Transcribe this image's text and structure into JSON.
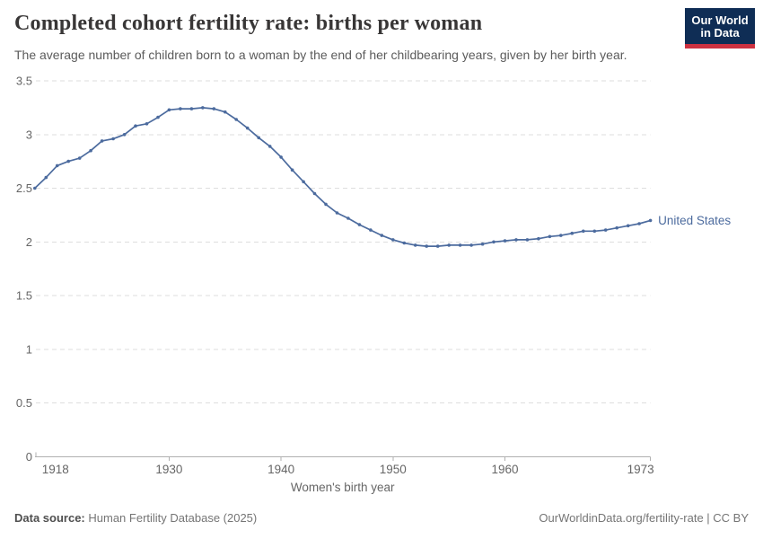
{
  "header": {
    "title": "Completed cohort fertility rate: births per woman",
    "subtitle": "The average number of children born to a woman by the end of her childbearing years, given by her birth year.",
    "logo": {
      "line1": "Our World",
      "line2": "in Data",
      "bg_color": "#0f2d55",
      "accent_color": "#cd3140"
    }
  },
  "chart_data": {
    "type": "line",
    "title": "Completed cohort fertility rate: births per woman",
    "xlabel": "Women's birth year",
    "ylabel": "",
    "xlim": [
      1918,
      1973
    ],
    "ylim": [
      0,
      3.5
    ],
    "x_ticks": [
      1918,
      1930,
      1940,
      1950,
      1960,
      1973
    ],
    "y_ticks": [
      0,
      0.5,
      1,
      1.5,
      2,
      2.5,
      3,
      3.5
    ],
    "grid": "horizontal-dashed",
    "legend_position": "end-of-line",
    "grid_color": "#dedede",
    "axis_color": "#b0b0b0",
    "tick_label_color": "#666666",
    "series": [
      {
        "name": "United States",
        "color": "#4c6b9e",
        "x": [
          1918,
          1919,
          1920,
          1921,
          1922,
          1923,
          1924,
          1925,
          1926,
          1927,
          1928,
          1929,
          1930,
          1931,
          1932,
          1933,
          1934,
          1935,
          1936,
          1937,
          1938,
          1939,
          1940,
          1941,
          1942,
          1943,
          1944,
          1945,
          1946,
          1947,
          1948,
          1949,
          1950,
          1951,
          1952,
          1953,
          1954,
          1955,
          1956,
          1957,
          1958,
          1959,
          1960,
          1961,
          1962,
          1963,
          1964,
          1965,
          1966,
          1967,
          1968,
          1969,
          1970,
          1971,
          1972,
          1973
        ],
        "values": [
          2.5,
          2.6,
          2.71,
          2.75,
          2.78,
          2.85,
          2.94,
          2.96,
          3.0,
          3.08,
          3.1,
          3.16,
          3.23,
          3.24,
          3.24,
          3.25,
          3.24,
          3.21,
          3.14,
          3.06,
          2.97,
          2.89,
          2.79,
          2.67,
          2.56,
          2.45,
          2.35,
          2.27,
          2.22,
          2.16,
          2.11,
          2.06,
          2.02,
          1.99,
          1.97,
          1.96,
          1.96,
          1.97,
          1.97,
          1.97,
          1.98,
          2.0,
          2.01,
          2.02,
          2.02,
          2.03,
          2.05,
          2.06,
          2.08,
          2.1,
          2.1,
          2.11,
          2.13,
          2.15,
          2.17,
          2.2
        ]
      }
    ]
  },
  "footer": {
    "source_label": "Data source:",
    "source_value": "Human Fertility Database (2025)",
    "attribution": "OurWorldinData.org/fertility-rate | CC BY"
  }
}
